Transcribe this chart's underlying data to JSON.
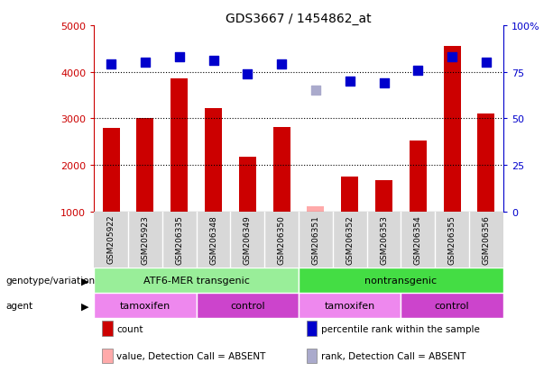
{
  "title": "GDS3667 / 1454862_at",
  "samples": [
    "GSM205922",
    "GSM205923",
    "GSM206335",
    "GSM206348",
    "GSM206349",
    "GSM206350",
    "GSM206351",
    "GSM206352",
    "GSM206353",
    "GSM206354",
    "GSM206355",
    "GSM206356"
  ],
  "counts": [
    2800,
    3000,
    3850,
    3220,
    2180,
    2820,
    null,
    1740,
    1680,
    2530,
    4560,
    3100
  ],
  "counts_absent": [
    null,
    null,
    null,
    null,
    null,
    null,
    1100,
    null,
    null,
    null,
    null,
    null
  ],
  "percentile_ranks": [
    79,
    80,
    83,
    81,
    74,
    79,
    null,
    70,
    69,
    76,
    83,
    80
  ],
  "percentile_ranks_absent": [
    null,
    null,
    null,
    null,
    null,
    null,
    65,
    null,
    null,
    null,
    null,
    null
  ],
  "bar_color": "#cc0000",
  "bar_absent_color": "#ffaaaa",
  "dot_color": "#0000cc",
  "dot_absent_color": "#aaaacc",
  "ylim_left": [
    1000,
    5000
  ],
  "ylim_right": [
    0,
    100
  ],
  "yticks_left": [
    1000,
    2000,
    3000,
    4000,
    5000
  ],
  "yticks_right": [
    0,
    25,
    50,
    75,
    100
  ],
  "yticklabels_right": [
    "0",
    "25",
    "50",
    "75",
    "100%"
  ],
  "grid_values": [
    2000,
    3000,
    4000
  ],
  "xtick_bg_color": "#d8d8d8",
  "genotype_groups": [
    {
      "label": "ATF6-MER transgenic",
      "start": 0,
      "end": 6,
      "color": "#99ee99"
    },
    {
      "label": "nontransgenic",
      "start": 6,
      "end": 12,
      "color": "#44dd44"
    }
  ],
  "agent_groups": [
    {
      "label": "tamoxifen",
      "start": 0,
      "end": 3,
      "color": "#ee88ee"
    },
    {
      "label": "control",
      "start": 3,
      "end": 6,
      "color": "#cc44cc"
    },
    {
      "label": "tamoxifen",
      "start": 6,
      "end": 9,
      "color": "#ee88ee"
    },
    {
      "label": "control",
      "start": 9,
      "end": 12,
      "color": "#cc44cc"
    }
  ],
  "legend_items": [
    {
      "label": "count",
      "color": "#cc0000"
    },
    {
      "label": "percentile rank within the sample",
      "color": "#0000cc"
    },
    {
      "label": "value, Detection Call = ABSENT",
      "color": "#ffaaaa"
    },
    {
      "label": "rank, Detection Call = ABSENT",
      "color": "#aaaacc"
    }
  ],
  "left_axis_color": "#cc0000",
  "right_axis_color": "#0000cc",
  "bar_width": 0.5,
  "dot_size": 45,
  "label_genotype": "genotype/variation",
  "label_agent": "agent"
}
